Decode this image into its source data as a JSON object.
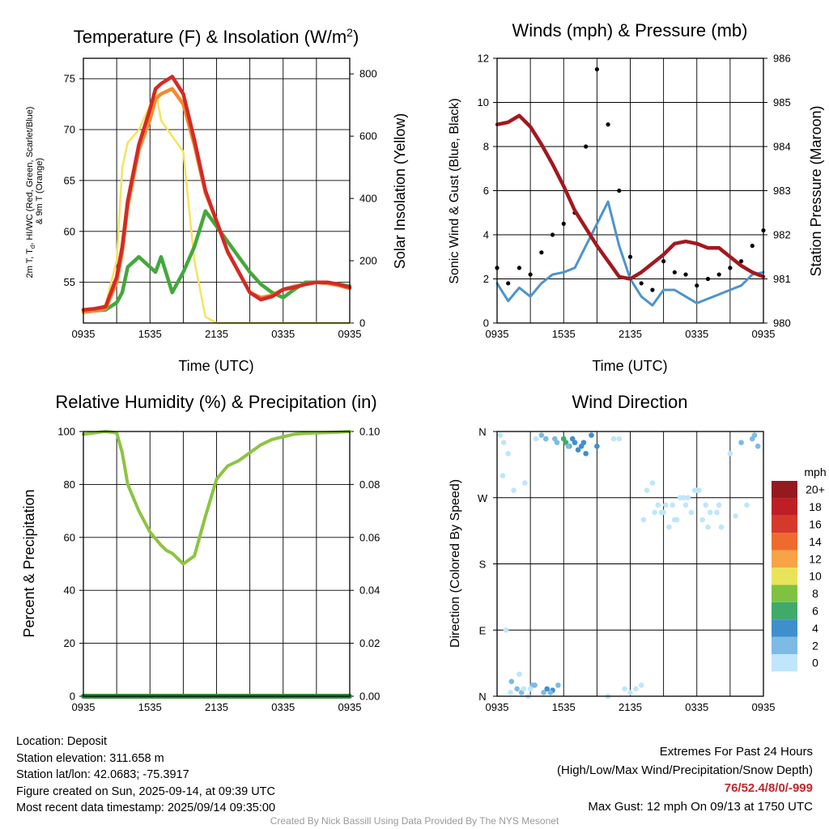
{
  "time_ticks": [
    "0935",
    "1535",
    "2135",
    "0335",
    "0935"
  ],
  "chart_data": [
    {
      "type": "line",
      "title": "Temperature (F) & Insolation (W/m²)",
      "xlabel": "Time (UTC)",
      "ylabel_left": "2m T, Td, HI/WC (Red, Green, Scarlet/Blue) & 9m T (Orange)",
      "ylabel_right": "Solar Insolation (Yellow)",
      "ylim_left": [
        51,
        77
      ],
      "yticks_left": [
        55,
        60,
        65,
        70,
        75
      ],
      "ylim_right": [
        0,
        850
      ],
      "yticks_right": [
        0,
        200,
        400,
        600,
        800
      ],
      "x_hours_since_0935": [
        0,
        1,
        2,
        3,
        3.5,
        4,
        5,
        6,
        6.5,
        7,
        8,
        9,
        10,
        11,
        12,
        13,
        14,
        15,
        16,
        17,
        18,
        19,
        20,
        21,
        22,
        23,
        24
      ],
      "series": [
        {
          "color": "#d42a26",
          "axis": "left",
          "values": [
            52.3,
            52.4,
            52.6,
            55.5,
            58.5,
            63,
            68.5,
            72,
            74,
            74.5,
            75.2,
            73.5,
            69,
            64,
            61,
            58,
            56,
            54,
            53.3,
            53.6,
            54.3,
            54.5,
            54.8,
            55,
            55,
            54.8,
            54.5
          ]
        },
        {
          "color": "#f28a2e",
          "axis": "left",
          "values": [
            52.1,
            52.2,
            52.4,
            55,
            58,
            62.5,
            68,
            71,
            73,
            73.5,
            74,
            72.5,
            68.5,
            63.8,
            61,
            58,
            56,
            54,
            53.5,
            53.7,
            54.3,
            54.6,
            54.8,
            55,
            54.9,
            54.7,
            54.4
          ]
        },
        {
          "color": "#43a83c",
          "axis": "left",
          "values": [
            52.3,
            52.2,
            52.3,
            53,
            54,
            56.5,
            57.5,
            56.5,
            56,
            57.5,
            54,
            56,
            58.5,
            62,
            60.5,
            59,
            57.5,
            56,
            54.8,
            54,
            53.5,
            54.3,
            55,
            55,
            54.9,
            54.8,
            54.6
          ]
        },
        {
          "color": "#f6e35c",
          "axis": "right",
          "values": [
            30,
            40,
            60,
            200,
            500,
            580,
            620,
            700,
            750,
            650,
            600,
            550,
            200,
            20,
            0,
            0,
            0,
            0,
            0,
            0,
            0,
            0,
            0,
            0,
            0,
            0,
            0
          ]
        }
      ]
    },
    {
      "type": "line",
      "title": "Winds (mph) & Pressure (mb)",
      "xlabel": "Time (UTC)",
      "ylabel_left": "Sonic Wind & Gust (Blue, Black)",
      "ylabel_right": "Station Pressure (Maroon)",
      "ylim_left": [
        0,
        12
      ],
      "yticks_left": [
        0,
        2,
        4,
        6,
        8,
        10,
        12
      ],
      "ylim_right": [
        980,
        986
      ],
      "yticks_right": [
        980,
        981,
        982,
        983,
        984,
        985,
        986
      ],
      "x_hours_since_0935": [
        0,
        1,
        2,
        3,
        4,
        5,
        6,
        7,
        8,
        9,
        10,
        11,
        12,
        13,
        14,
        15,
        16,
        17,
        18,
        19,
        20,
        21,
        22,
        23,
        24
      ],
      "series": [
        {
          "name": "Sonic Wind",
          "color": "#4d94cc",
          "axis": "left",
          "values": [
            1.8,
            1,
            1.6,
            1.2,
            1.8,
            2.2,
            2.3,
            2.5,
            3.5,
            4.5,
            5.5,
            3.5,
            2,
            1.2,
            0.8,
            1.5,
            1.5,
            1.2,
            0.9,
            1.1,
            1.3,
            1.5,
            1.7,
            2.2,
            2.3
          ]
        },
        {
          "name": "Gust",
          "color": "#000000",
          "axis": "left",
          "values": [
            2.5,
            1.8,
            2.5,
            2.2,
            3.2,
            4,
            4.5,
            5,
            8,
            11.5,
            9,
            6,
            3,
            1.8,
            1.5,
            2.8,
            2.3,
            2.2,
            1.7,
            2,
            2.2,
            2.5,
            2.8,
            3.5,
            4.2
          ]
        },
        {
          "name": "Station Pressure",
          "color": "#a3181e",
          "axis": "right",
          "values": [
            984.5,
            984.55,
            984.7,
            984.45,
            984.05,
            983.6,
            983.1,
            982.55,
            982.15,
            981.75,
            981.4,
            981.05,
            981,
            981.15,
            981.35,
            981.55,
            981.8,
            981.85,
            981.8,
            981.7,
            981.7,
            981.5,
            981.3,
            981.15,
            981.05
          ]
        }
      ]
    },
    {
      "type": "line",
      "title": "Relative Humidity (%) & Precipitation (in)",
      "ylabel_left": "Percent & Precipitation",
      "ylim_left": [
        0,
        100
      ],
      "yticks_left": [
        0,
        20,
        40,
        60,
        80,
        100
      ],
      "ylim_right": [
        0,
        0.1
      ],
      "yticks_right": [
        "0.00",
        "0.02",
        "0.04",
        "0.06",
        "0.08",
        "0.10"
      ],
      "x_hours_since_0935": [
        0,
        1,
        2,
        3,
        3.5,
        4,
        5,
        6,
        7,
        7.5,
        8,
        9,
        10,
        11,
        12,
        13,
        14,
        15,
        16,
        17,
        18,
        19,
        20,
        21,
        22,
        23,
        24
      ],
      "series": [
        {
          "name": "Relative Humidity",
          "color": "#8cc441",
          "axis": "left",
          "values": [
            99,
            99.5,
            100,
            99.5,
            92,
            80,
            70,
            62,
            57,
            55,
            54,
            50,
            53,
            68,
            82,
            87,
            89,
            92,
            95,
            97,
            98,
            99,
            99.3,
            99.5,
            99.6,
            99.8,
            100
          ]
        },
        {
          "name": "Precipitation",
          "color": "#2e8b3a",
          "axis": "right",
          "values": [
            0,
            0,
            0,
            0,
            0,
            0,
            0,
            0,
            0,
            0,
            0,
            0,
            0,
            0,
            0,
            0,
            0,
            0,
            0,
            0,
            0,
            0,
            0,
            0,
            0,
            0,
            0
          ]
        }
      ]
    },
    {
      "type": "scatter",
      "title": "Wind Direction",
      "ylabel_left": "Direction (Colored By Speed)",
      "yticks_left": [
        "N",
        "E",
        "S",
        "W",
        "N"
      ],
      "legend_title": "mph",
      "legend_labels": [
        "0",
        "2",
        "4",
        "6",
        "8",
        "10",
        "12",
        "14",
        "16",
        "18",
        "20+"
      ],
      "legend_colors": [
        "#bfe6fa",
        "#7dbbe4",
        "#3f8fcd",
        "#3faa6a",
        "#7fc241",
        "#e9e35a",
        "#f6a445",
        "#ee6b2d",
        "#d7382c",
        "#be1f24",
        "#951a1d"
      ],
      "x_hours": [
        0.3,
        0.6,
        1,
        1.3,
        1.8,
        2.2,
        2.8,
        3.2,
        4.5,
        5,
        5.5,
        6,
        6.2,
        6.5,
        7,
        7.3,
        7.6,
        8,
        10,
        11,
        12,
        12.5,
        13,
        13.5,
        14,
        14.5,
        15,
        15.5,
        16,
        16.5,
        17,
        17.5,
        18,
        18.5,
        19,
        20,
        21,
        22,
        23,
        23.5,
        0.5,
        1.5,
        2.5,
        3.5,
        4,
        4.8,
        6.8,
        8.5,
        9,
        0.8,
        2,
        3,
        4.2,
        5.2,
        7.8,
        10.5,
        11.5,
        14.2,
        15.2,
        16.2,
        17.2,
        18.2,
        19.2,
        20.2,
        21.5,
        22.5,
        23.2,
        1.2,
        2.4,
        3.4,
        4.4,
        5.4,
        6.4,
        13.2,
        14.8,
        15.8,
        16.8,
        17.8,
        18.8,
        19.8
      ],
      "y_deg": [
        355,
        345,
        330,
        20,
        10,
        5,
        0,
        15,
        10,
        8,
        15,
        350,
        345,
        340,
        345,
        335,
        340,
        330,
        0,
        350,
        5,
        10,
        15,
        280,
        290,
        260,
        250,
        230,
        240,
        270,
        260,
        250,
        280,
        240,
        230,
        260,
        330,
        345,
        350,
        340,
        300,
        280,
        290,
        350,
        355,
        5,
        350,
        355,
        340,
        90,
        30,
        10,
        5,
        350,
        345,
        350,
        10,
        250,
        260,
        240,
        270,
        280,
        250,
        230,
        245,
        260,
        355,
        5,
        10,
        15,
        350,
        345,
        340,
        240,
        250,
        260,
        270,
        280,
        260,
        250
      ],
      "speeds_mph": [
        1,
        1,
        1,
        3,
        3,
        3,
        1,
        2,
        4,
        4,
        3,
        7,
        7,
        7,
        4,
        4,
        4,
        4,
        1,
        1,
        1,
        1,
        1,
        1,
        1,
        1,
        1,
        1,
        1,
        1,
        1,
        1,
        1,
        1,
        1,
        1,
        1,
        2,
        3,
        3,
        1,
        1,
        1,
        1,
        3,
        3,
        4,
        4,
        4,
        1,
        1,
        1,
        2,
        2,
        4,
        1,
        1,
        1,
        1,
        1,
        1,
        1,
        1,
        1,
        1,
        1,
        2,
        1,
        1,
        2,
        3,
        3,
        3,
        1,
        1,
        1,
        1,
        1,
        1,
        1
      ]
    }
  ],
  "footer": {
    "location": "Location: Deposit",
    "elevation": "Station elevation: 311.658 m",
    "latlon": "Station lat/lon: 42.0683; -75.3917",
    "created": "Figure created on Sun, 2025-09-14, at 09:39 UTC",
    "recent": "Most recent data timestamp: 2025/09/14 09:35:00",
    "extremes_title": "Extremes For Past 24 Hours",
    "extremes_sub": "(High/Low/Max Wind/Precipitation/Snow Depth)",
    "extremes_values": "76/52.4/8/0/-999",
    "max_gust": "Max Gust: 12 mph On 09/13 at 1750 UTC",
    "credit": "Created By Nick Bassill Using Data Provided By The NYS Mesonet"
  }
}
